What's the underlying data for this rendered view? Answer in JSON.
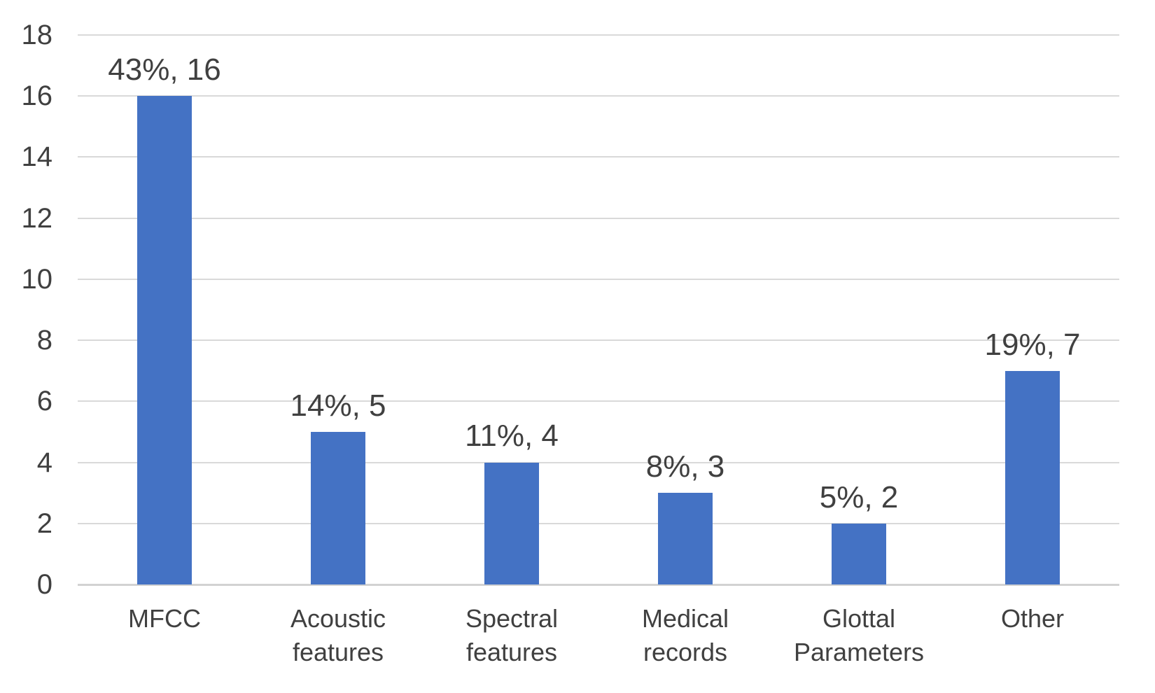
{
  "chart_data": {
    "type": "bar",
    "title": "",
    "xlabel": "",
    "ylabel": "",
    "categories": [
      "MFCC",
      "Acoustic features",
      "Spectral features",
      "Medical records",
      "Glottal Parameters",
      "Other"
    ],
    "values": [
      16,
      5,
      4,
      3,
      2,
      7
    ],
    "percentages": [
      43,
      14,
      11,
      8,
      5,
      19
    ],
    "data_labels": [
      "43%, 16",
      "14%, 5",
      "11%, 4",
      "8%, 3",
      "5%, 2",
      "19%, 7"
    ],
    "yticks": [
      0,
      2,
      4,
      6,
      8,
      10,
      12,
      14,
      16,
      18
    ],
    "ylim": [
      0,
      18
    ],
    "grid": true,
    "legend_position": "none",
    "colors": {
      "bar": "#4472C4",
      "gridline": "#D9D9D9",
      "axis_line": "#D2D2D2",
      "text": "#404040",
      "background": "#FFFFFF"
    }
  }
}
